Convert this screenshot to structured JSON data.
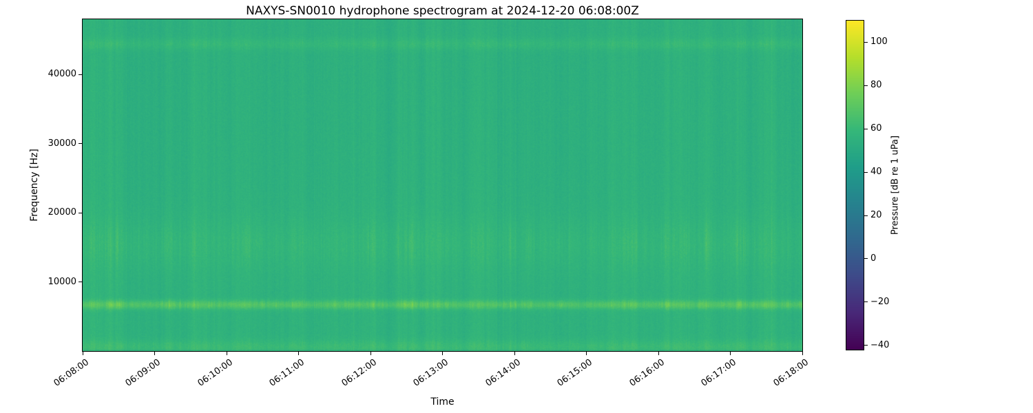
{
  "chart_data": {
    "type": "heatmap",
    "subtype": "spectrogram",
    "title": "NAXYS-SN0010 hydrophone spectrogram at 2024-12-20 06:08:00Z",
    "xlabel": "Time",
    "ylabel": "Frequency [Hz]",
    "x_ticks": [
      "06:08:00",
      "06:09:00",
      "06:10:00",
      "06:11:00",
      "06:12:00",
      "06:13:00",
      "06:14:00",
      "06:15:00",
      "06:16:00",
      "06:17:00",
      "06:18:00"
    ],
    "y_ticks": [
      10000,
      20000,
      30000,
      40000
    ],
    "ylim_hz": [
      0,
      48000
    ],
    "xlim_time": [
      "06:08:00",
      "06:18:00"
    ],
    "grid": false,
    "legend": "none",
    "colorbar": {
      "label": "Pressure [dB re 1 uPa]",
      "ticks": [
        100,
        80,
        60,
        40,
        20,
        0,
        -20,
        -40
      ],
      "vmin": -42,
      "vmax": 110,
      "colormap": "viridis"
    },
    "background_db": 54,
    "vertical_striation_db": 2.2,
    "bands": [
      {
        "name": "tonal-band",
        "center_hz": 6700,
        "sigma_hz": 450,
        "boost_db": 10,
        "flicker_db": 14
      },
      {
        "name": "mid-speckle-band",
        "center_hz": 15500,
        "sigma_hz": 2600,
        "boost_db": 2,
        "flicker_db": 7
      },
      {
        "name": "low-frequency-band",
        "center_hz": 600,
        "sigma_hz": 700,
        "boost_db": 5,
        "flicker_db": 3
      },
      {
        "name": "high-frequency-line",
        "center_hz": 44400,
        "sigma_hz": 600,
        "boost_db": 4,
        "flicker_db": 3
      }
    ],
    "viridis_stops": [
      [
        68,
        1,
        84
      ],
      [
        72,
        40,
        120
      ],
      [
        62,
        74,
        137
      ],
      [
        49,
        104,
        142
      ],
      [
        38,
        130,
        142
      ],
      [
        31,
        158,
        137
      ],
      [
        53,
        183,
        121
      ],
      [
        110,
        206,
        88
      ],
      [
        181,
        222,
        43
      ],
      [
        253,
        231,
        37
      ]
    ]
  }
}
